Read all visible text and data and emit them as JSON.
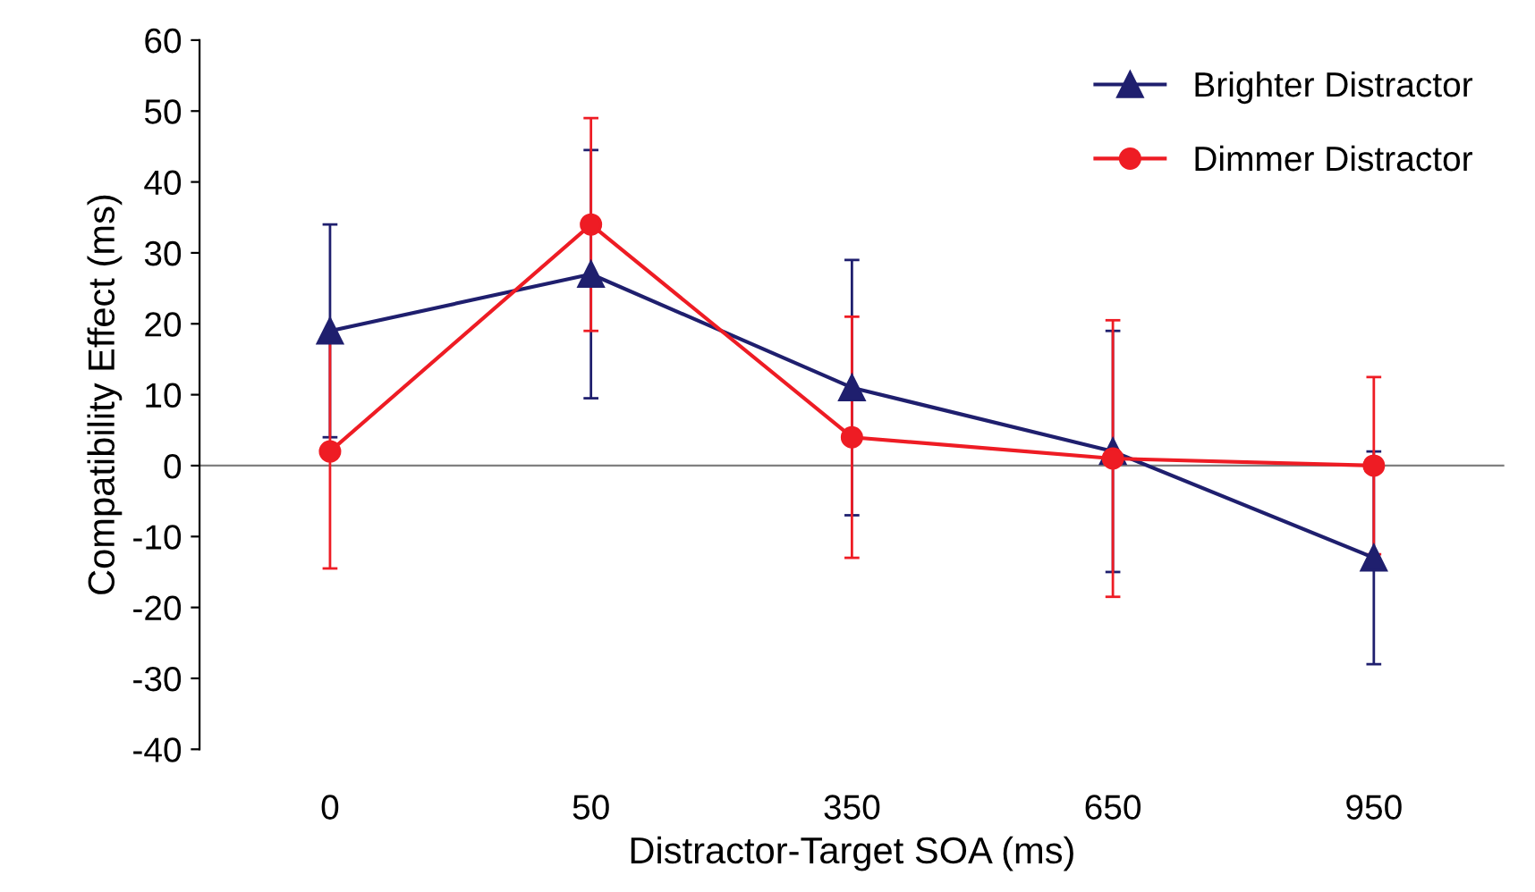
{
  "chart_data": {
    "type": "line",
    "xlabel": "Distractor-Target SOA (ms)",
    "ylabel": "Compatibility Effect (ms)",
    "categories": [
      "0",
      "50",
      "350",
      "650",
      "950"
    ],
    "series": [
      {
        "name": "Brighter Distractor",
        "color": "#1f1f6e",
        "marker": "triangle",
        "values": [
          19,
          27,
          11,
          2,
          -13
        ],
        "errors": [
          15,
          17.5,
          18,
          17,
          15
        ]
      },
      {
        "name": "Dimmer Distractor",
        "color": "#ee1c24",
        "marker": "circle",
        "values": [
          2,
          34,
          4,
          1,
          0
        ],
        "errors": [
          16.5,
          15,
          17,
          19.5,
          12.5
        ]
      }
    ],
    "ylim": [
      -40,
      60
    ],
    "yticks": [
      -40,
      -30,
      -20,
      -10,
      0,
      10,
      20,
      30,
      40,
      50,
      60
    ],
    "ref_lines": [
      {
        "axis": "y",
        "value": 0,
        "color": "#808080"
      }
    ],
    "grid": false,
    "legend": "top right",
    "line_style": "solid"
  }
}
